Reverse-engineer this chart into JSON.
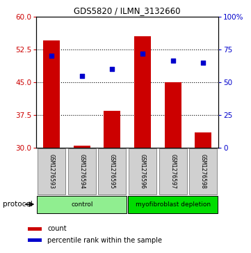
{
  "title": "GDS5820 / ILMN_3132660",
  "samples": [
    "GSM1276593",
    "GSM1276594",
    "GSM1276595",
    "GSM1276596",
    "GSM1276597",
    "GSM1276598"
  ],
  "bar_bottom": 30,
  "bar_tops": [
    54.5,
    30.5,
    38.5,
    55.5,
    45.0,
    33.5
  ],
  "blue_dots_left": [
    51.0,
    46.5,
    48.0,
    51.5,
    50.0,
    49.5
  ],
  "left_ylim": [
    30,
    60
  ],
  "left_yticks": [
    30,
    37.5,
    45,
    52.5,
    60
  ],
  "right_ylim": [
    0,
    100
  ],
  "right_yticks": [
    0,
    25,
    50,
    75,
    100
  ],
  "right_yticklabels": [
    "0",
    "25",
    "50",
    "75",
    "100%"
  ],
  "bar_color": "#cc0000",
  "dot_color": "#0000cc",
  "protocol_groups": [
    {
      "label": "control",
      "samples_idx": [
        0,
        1,
        2
      ],
      "color": "#90ee90"
    },
    {
      "label": "myofibroblast depletion",
      "samples_idx": [
        3,
        4,
        5
      ],
      "color": "#00dd00"
    }
  ],
  "legend_count_label": "count",
  "legend_pct_label": "percentile rank within the sample",
  "protocol_label": "protocol",
  "tick_label_color_left": "#cc0000",
  "tick_label_color_right": "#0000cc",
  "bar_width": 0.55,
  "label_box_color": "#d0d0d0",
  "label_box_edgecolor": "#888888"
}
